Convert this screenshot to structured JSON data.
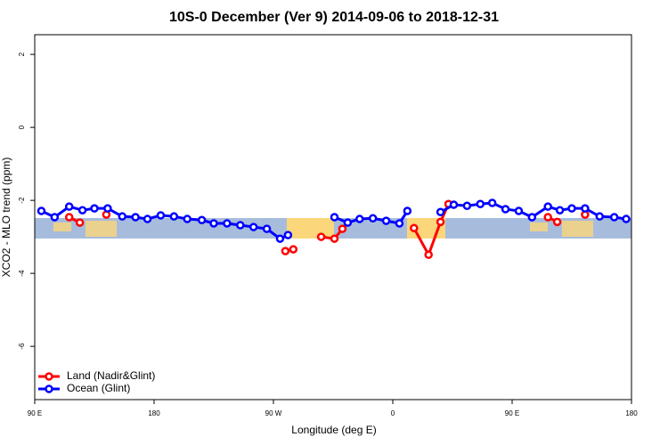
{
  "chart_data": {
    "type": "line",
    "title": "10S-0 December (Ver 9)   2014-09-06 to 2018-12-31",
    "x_label": "Longitude (deg E)",
    "y_label": "XCO2 - MLO trend (ppm)",
    "xlim": [
      90,
      540
    ],
    "ylim": [
      -7.46,
      2.54
    ],
    "xticks": [
      {
        "value": 90,
        "label": "90 E"
      },
      {
        "value": 180,
        "label": "180"
      },
      {
        "value": 270,
        "label": "90 W"
      },
      {
        "value": 360,
        "label": "0"
      },
      {
        "value": 450,
        "label": "90 E"
      },
      {
        "value": 540,
        "label": "180"
      }
    ],
    "yticks": [
      -6,
      -4,
      -2,
      0,
      2
    ],
    "legend": "bottom-left",
    "series": [
      {
        "name": "Land (Nadir&Glint)",
        "color": "#ff0000",
        "x": [
          116,
          124,
          null,
          144,
          null,
          279,
          285,
          null,
          306,
          316,
          322,
          null,
          376,
          387,
          396,
          402,
          null,
          477,
          484,
          null,
          505
        ],
        "values": [
          -2.46,
          -2.61,
          null,
          -2.39,
          null,
          -3.39,
          -3.34,
          null,
          -3.0,
          -3.05,
          -2.78,
          null,
          -2.76,
          -3.49,
          -2.59,
          -2.1,
          null,
          -2.46,
          -2.59,
          null,
          -2.39
        ]
      },
      {
        "name": "Ocean (Glint)",
        "color": "#0000ff",
        "x": [
          95,
          105,
          116,
          126,
          135,
          145,
          156,
          166,
          175,
          185,
          195,
          205,
          216,
          225,
          235,
          245,
          255,
          265,
          275,
          281,
          null,
          316,
          326,
          335,
          345,
          355,
          365,
          371,
          null,
          396,
          406,
          416,
          426,
          435,
          445,
          455,
          465,
          477,
          486,
          495,
          505,
          516,
          527,
          536
        ],
        "values": [
          -2.29,
          -2.46,
          -2.17,
          -2.27,
          -2.22,
          -2.22,
          -2.44,
          -2.46,
          -2.51,
          -2.41,
          -2.44,
          -2.51,
          -2.54,
          -2.63,
          -2.63,
          -2.68,
          -2.73,
          -2.78,
          -3.05,
          -2.95,
          null,
          -2.46,
          -2.61,
          -2.51,
          -2.49,
          -2.56,
          -2.63,
          -2.29,
          null,
          -2.32,
          -2.12,
          -2.15,
          -2.1,
          -2.07,
          -2.24,
          -2.29,
          -2.46,
          -2.17,
          -2.27,
          -2.22,
          -2.22,
          -2.44,
          -2.46,
          -2.51
        ]
      }
    ]
  }
}
